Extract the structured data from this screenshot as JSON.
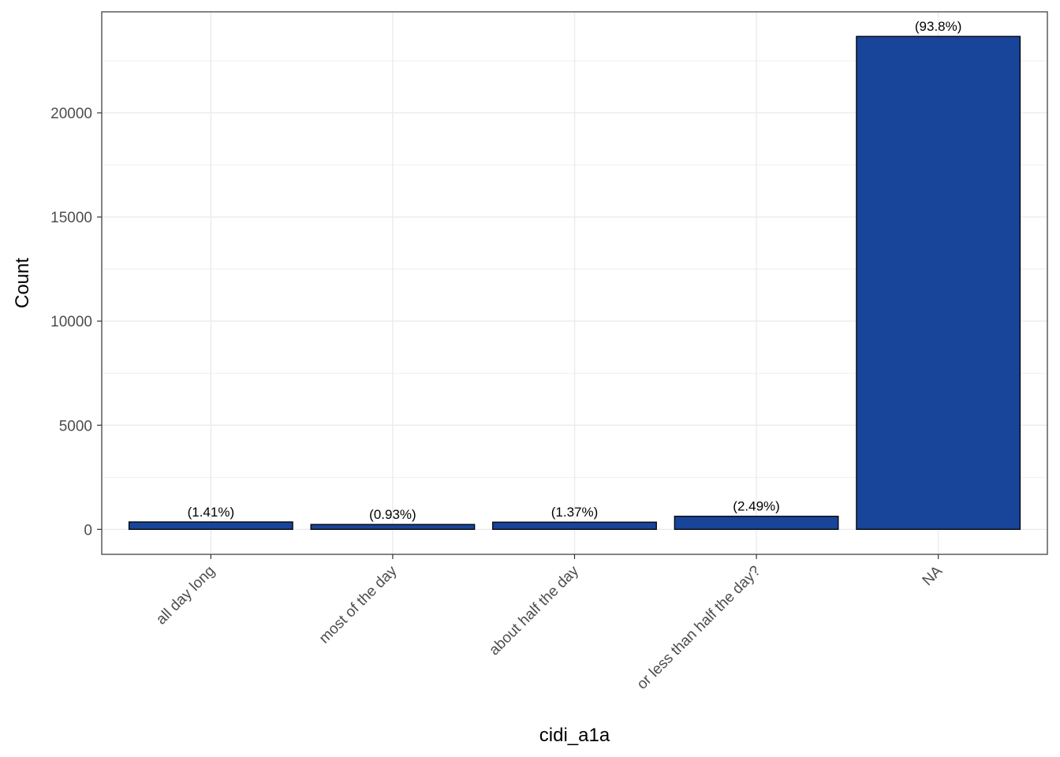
{
  "chart_data": {
    "type": "bar",
    "categories": [
      "all day long",
      "most of the day",
      "about half the day",
      "or less than half the day?",
      "NA"
    ],
    "values": [
      356,
      235,
      346,
      628,
      23670
    ],
    "data_labels": [
      "(1.41%)",
      "(0.93%)",
      "(1.37%)",
      "(2.49%)",
      "(93.8%)"
    ],
    "xlabel": "cidi_a1a",
    "ylabel": "Count",
    "ylim": [
      -1200,
      24850
    ],
    "yticks": [
      0,
      5000,
      10000,
      15000,
      20000
    ],
    "ytick_labels": [
      "0",
      "5000",
      "10000",
      "15000",
      "20000"
    ],
    "grid": true,
    "colors": {
      "bar_fill": "#18449A",
      "bar_stroke": "#000000",
      "grid": "#EBEBEB",
      "panel_border": "#333333"
    }
  }
}
